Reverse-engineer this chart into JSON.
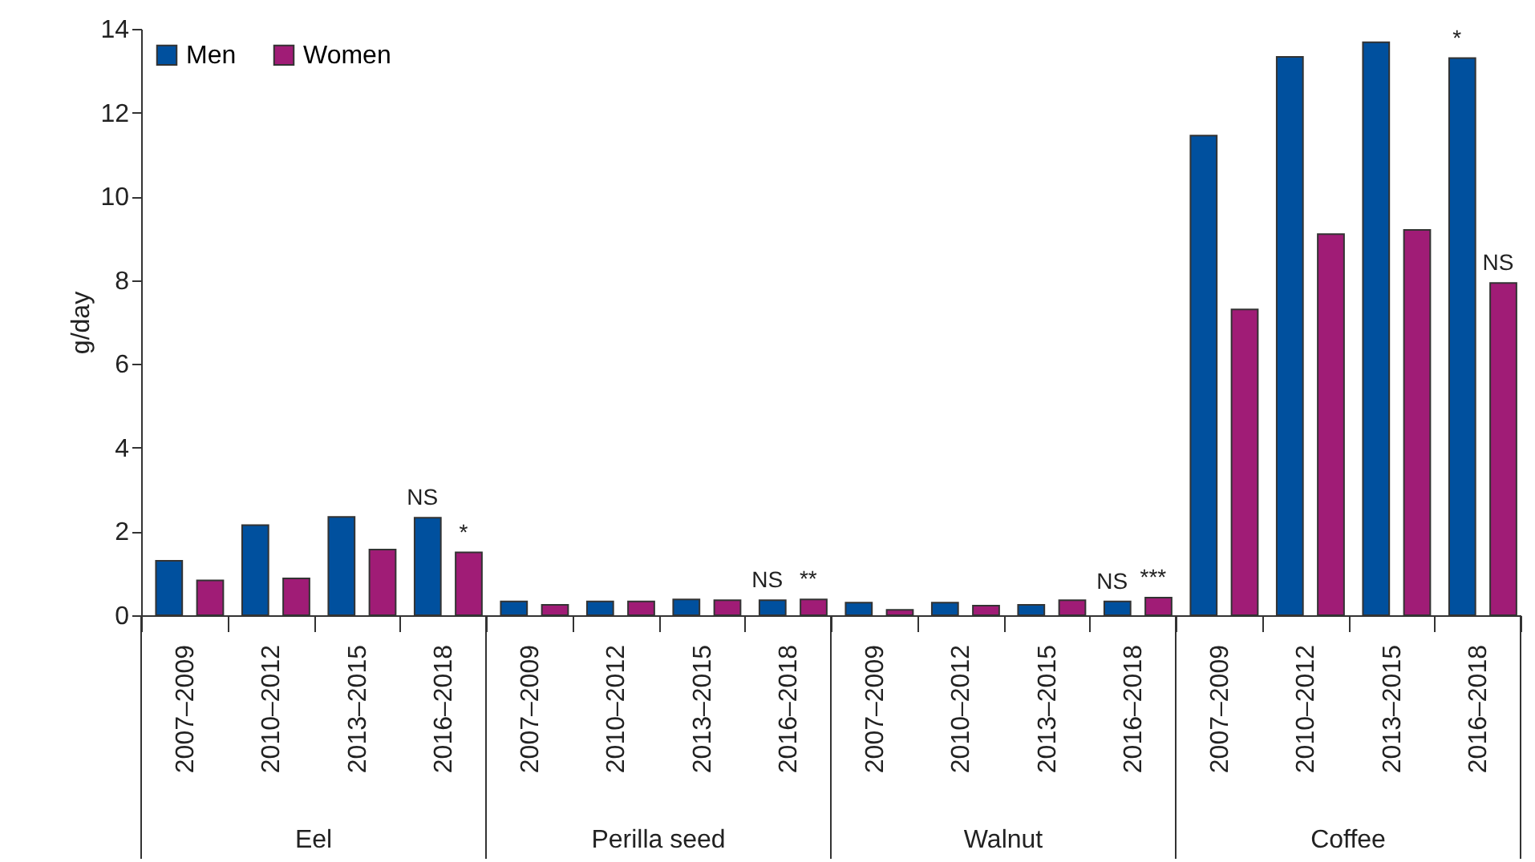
{
  "chart_data": {
    "type": "bar",
    "ylabel": "g/day",
    "categories": [
      "2007–2009",
      "2010–2012",
      "2013–2015",
      "2016–2018",
      "2007–2009",
      "2010–2012",
      "2013–2015",
      "2016–2018",
      "2007–2009",
      "2010–2012",
      "2013–2015",
      "2016–2018",
      "2007–2009",
      "2010–2012",
      "2013–2015",
      "2016–2018"
    ],
    "series": [
      {
        "name": "Men",
        "color": "#00509e",
        "values": [
          1.3,
          2.15,
          2.35,
          2.33,
          0.33,
          0.33,
          0.38,
          0.36,
          0.3,
          0.3,
          0.25,
          0.33,
          11.45,
          13.33,
          13.68,
          13.3
        ],
        "value_labels": [
          null,
          null,
          null,
          "NS",
          null,
          null,
          null,
          "NS",
          null,
          null,
          null,
          "NS",
          null,
          null,
          null,
          "*"
        ]
      },
      {
        "name": "Women",
        "color": "#a01c76",
        "values": [
          0.83,
          0.88,
          1.57,
          1.5,
          0.25,
          0.33,
          0.36,
          0.38,
          0.13,
          0.23,
          0.36,
          0.42,
          7.3,
          9.1,
          9.2,
          7.93
        ],
        "value_labels": [
          null,
          null,
          null,
          "*",
          null,
          null,
          null,
          "**",
          null,
          null,
          null,
          "***",
          null,
          null,
          null,
          "NS"
        ]
      }
    ],
    "annotations": [
      "Eel",
      "Perilla seed",
      "Walnut",
      "Coffee"
    ],
    "ylim": [
      0,
      14
    ],
    "yticks": [
      0,
      2,
      4,
      6,
      8,
      10,
      12,
      14
    ],
    "grid": false,
    "legend": "top left"
  }
}
